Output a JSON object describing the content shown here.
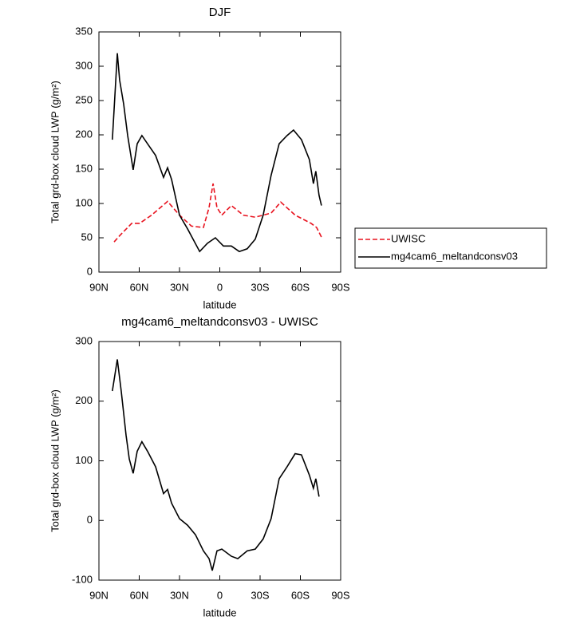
{
  "chart_data": [
    {
      "type": "line",
      "title": "DJF",
      "xlabel": "latitude",
      "ylabel": "Total grd-box cloud LWP (g/m²)",
      "xlim": [
        90,
        -90
      ],
      "ylim": [
        0,
        350
      ],
      "xticks": [
        {
          "value": 90,
          "label": "90N"
        },
        {
          "value": 60,
          "label": "60N"
        },
        {
          "value": 30,
          "label": "30N"
        },
        0,
        {
          "value": -30,
          "label": "30S"
        },
        {
          "value": -60,
          "label": "60S"
        },
        {
          "value": -90,
          "label": "90S"
        }
      ],
      "yticks": [
        0,
        50,
        100,
        150,
        200,
        250,
        300,
        350
      ],
      "legend": "right",
      "series": [
        {
          "name": "UWISC",
          "color": "#e8121e",
          "line_style": "dashed",
          "x": [
            78.7,
            74.6,
            68.6,
            65.6,
            59.7,
            50.8,
            38.9,
            30,
            21.1,
            12.2,
            8,
            5,
            2.1,
            -1.5,
            -8.6,
            -17.5,
            -26.4,
            -38.2,
            -45.4,
            -56.1,
            -68,
            -72.1,
            -75.7
          ],
          "values": [
            44,
            53,
            65,
            71,
            71,
            83,
            103,
            83,
            67,
            65,
            94,
            129,
            94,
            83,
            97,
            83,
            80,
            86,
            102,
            83,
            71,
            65,
            51
          ]
        },
        {
          "name": "mg4cam6_meltandconsv03",
          "color": "#000000",
          "line_style": "solid",
          "x": [
            80,
            76.3,
            74.6,
            71.6,
            68.6,
            64.5,
            61.5,
            58,
            53.8,
            47.8,
            41.9,
            38.9,
            35.9,
            30,
            24,
            15,
            9.2,
            3.3,
            -2.7,
            -8.6,
            -14.5,
            -20.4,
            -26.4,
            -32.3,
            -38.2,
            -44.2,
            -50.1,
            -54.9,
            -60.8,
            -66.7,
            -69.7,
            -71.5,
            -73.9,
            -75.7
          ],
          "values": [
            193,
            319,
            280,
            245,
            199,
            149,
            187,
            199,
            187,
            170,
            138,
            152,
            135,
            83,
            63,
            30,
            42,
            50,
            38,
            38,
            30,
            34,
            48,
            83,
            141,
            187,
            199,
            207,
            193,
            164,
            129,
            147,
            112,
            97
          ]
        }
      ]
    },
    {
      "type": "line",
      "title": "mg4cam6_meltandconsv03 - UWISC",
      "xlabel": "latitude",
      "ylabel": "Total grd-box cloud LWP (g/m²)",
      "xlim": [
        90,
        -90
      ],
      "ylim": [
        -100,
        300
      ],
      "xticks": [
        {
          "value": 90,
          "label": "90N"
        },
        {
          "value": 60,
          "label": "60N"
        },
        {
          "value": 30,
          "label": "30N"
        },
        0,
        {
          "value": -30,
          "label": "30S"
        },
        {
          "value": -60,
          "label": "60S"
        },
        {
          "value": -90,
          "label": "90S"
        }
      ],
      "yticks": [
        -100,
        0,
        100,
        200,
        300
      ],
      "series": [
        {
          "color": "#000000",
          "line_style": "solid",
          "x": [
            80,
            76.3,
            73.4,
            69.8,
            67.4,
            64.5,
            61.5,
            58,
            53.8,
            47.8,
            41.9,
            38.9,
            35.9,
            30,
            24,
            18.1,
            12.2,
            8,
            5.6,
            2.1,
            -1.5,
            -8.6,
            -13.4,
            -20.4,
            -26.4,
            -32.3,
            -38.2,
            -44.2,
            -50.1,
            -56.1,
            -60.8,
            -66.7,
            -69.7,
            -71.5,
            -73.9
          ],
          "values": [
            217,
            270,
            217,
            143,
            103,
            79,
            116,
            132,
            116,
            90,
            45,
            52,
            29,
            3,
            -8,
            -24,
            -51,
            -64,
            -84,
            -51,
            -48,
            -60,
            -64,
            -51,
            -48,
            -31,
            3,
            70,
            90,
            112,
            110,
            76,
            54,
            70,
            40
          ]
        }
      ]
    }
  ]
}
